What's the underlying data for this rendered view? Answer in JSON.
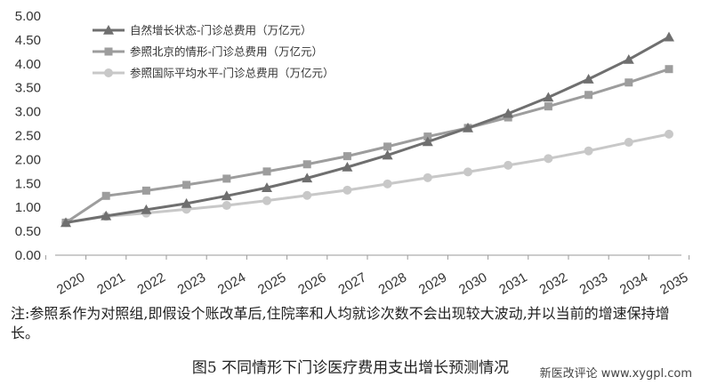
{
  "chart_data": {
    "type": "line",
    "categories": [
      "2020",
      "2021",
      "2022",
      "2023",
      "2024",
      "2025",
      "2026",
      "2027",
      "2028",
      "2029",
      "2030",
      "2031",
      "2032",
      "2033",
      "2034",
      "2035"
    ],
    "ylim": [
      0,
      5
    ],
    "yticks": [
      "0.00",
      "0.50",
      "1.00",
      "1.50",
      "2.00",
      "2.50",
      "3.00",
      "3.50",
      "4.00",
      "4.50",
      "5.00"
    ],
    "grid": false,
    "legend_position": "top-left",
    "series": [
      {
        "name": "自然增长状态-门诊总费用（万亿元）",
        "color": "#6f6f6f",
        "marker": "triangle",
        "values": [
          0.68,
          0.82,
          0.95,
          1.08,
          1.24,
          1.41,
          1.61,
          1.84,
          2.09,
          2.37,
          2.66,
          2.96,
          3.3,
          3.68,
          4.09,
          4.56
        ]
      },
      {
        "name": "参照北京的情形-门诊总费用（万亿元）",
        "color": "#9d9d9d",
        "marker": "square",
        "values": [
          0.68,
          1.24,
          1.35,
          1.47,
          1.6,
          1.75,
          1.9,
          2.07,
          2.27,
          2.48,
          2.66,
          2.88,
          3.11,
          3.35,
          3.61,
          3.89
        ]
      },
      {
        "name": "参照国际平均水平-门诊总费用（万亿元）",
        "color": "#c8c8c8",
        "marker": "circle",
        "values": [
          0.68,
          0.81,
          0.88,
          0.96,
          1.04,
          1.14,
          1.25,
          1.36,
          1.49,
          1.62,
          1.74,
          1.88,
          2.02,
          2.18,
          2.36,
          2.53
        ]
      }
    ]
  },
  "note": "注:参照系作为对照组,即假设个账改革后,住院率和人均就诊次数不会出现较大波动,并以当前的增速保持增长。",
  "caption": "图5  不同情形下门诊医疗费用支出增长预测情况",
  "watermark": "新医改评论 www.xygpl.com"
}
